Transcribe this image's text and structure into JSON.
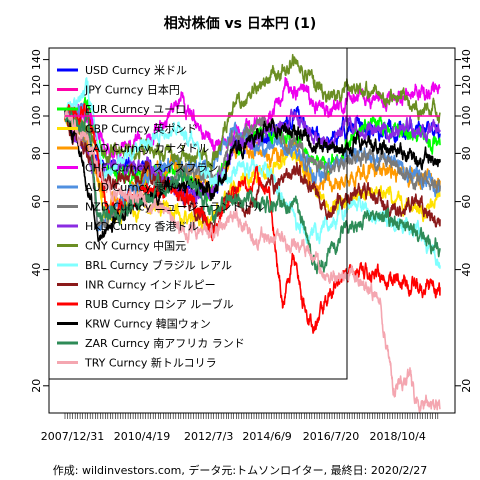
{
  "chart_data": {
    "type": "line",
    "title": "相対株価 vs 日本円 (1)",
    "caption": "作成: wildinvestors.com, データ元:トムソンロイター, 最終日: 2020/2/27",
    "y_scale": "log",
    "ylim": [
      17,
      150
    ],
    "y_ticks": [
      20,
      40,
      60,
      80,
      100,
      120,
      140
    ],
    "x_range": [
      "2007-10-01",
      "2020-02-27"
    ],
    "x_tick_labels": [
      {
        "label": "2007/12/31",
        "date": "2007-12-31"
      },
      {
        "label": "2010/4/19",
        "date": "2010-04-19"
      },
      {
        "label": "2012/7/3",
        "date": "2012-07-03"
      },
      {
        "label": "2014/6/9",
        "date": "2014-06-09"
      },
      {
        "label": "2016/7/20",
        "date": "2016-07-20"
      },
      {
        "label": "2018/10/4",
        "date": "2018-10-04"
      }
    ],
    "reference_line": {
      "y": 100,
      "color": "#ff00ff"
    },
    "legend": "top-left",
    "series": [
      {
        "name": "USD Curncy 米ドル",
        "color": "#0000ff",
        "points": [
          [
            "2007-10-01",
            100
          ],
          [
            "2008-03-01",
            87
          ],
          [
            "2009-01-15",
            73
          ],
          [
            "2010-06-01",
            75
          ],
          [
            "2011-10-01",
            63
          ],
          [
            "2012-09-01",
            63
          ],
          [
            "2013-05-01",
            84
          ],
          [
            "2014-02-01",
            86
          ],
          [
            "2015-06-05",
            100
          ],
          [
            "2016-06-24",
            83
          ],
          [
            "2017-01-01",
            95
          ],
          [
            "2017-09-01",
            92
          ],
          [
            "2018-12-01",
            92
          ],
          [
            "2020-02-27",
            90
          ]
        ]
      },
      {
        "name": "JPY Curncy 日本円",
        "color": "#ff00aa",
        "points": [
          [
            "2007-10-01",
            100
          ],
          [
            "2020-02-27",
            100
          ]
        ]
      },
      {
        "name": "EUR Curncy ユーロ",
        "color": "#00ff00",
        "points": [
          [
            "2007-10-01",
            100
          ],
          [
            "2008-07-15",
            105
          ],
          [
            "2009-03-01",
            74
          ],
          [
            "2010-06-01",
            69
          ],
          [
            "2011-04-15",
            75
          ],
          [
            "2012-07-24",
            63
          ],
          [
            "2013-05-01",
            83
          ],
          [
            "2014-01-01",
            91
          ],
          [
            "2015-04-01",
            87
          ],
          [
            "2016-06-24",
            74
          ],
          [
            "2017-06-01",
            90
          ],
          [
            "2018-02-01",
            95
          ],
          [
            "2019-06-01",
            88
          ],
          [
            "2020-02-27",
            84
          ]
        ]
      },
      {
        "name": "GBP Curncy 英ポンド",
        "color": "#ffe100",
        "points": [
          [
            "2007-10-01",
            100
          ],
          [
            "2008-07-01",
            92
          ],
          [
            "2009-01-20",
            54
          ],
          [
            "2010-06-01",
            59
          ],
          [
            "2011-06-01",
            56
          ],
          [
            "2012-06-01",
            53
          ],
          [
            "2013-06-01",
            66
          ],
          [
            "2014-07-01",
            74
          ],
          [
            "2015-07-01",
            77
          ],
          [
            "2016-06-24",
            57
          ],
          [
            "2017-06-01",
            62
          ],
          [
            "2018-04-01",
            63
          ],
          [
            "2019-08-01",
            56
          ],
          [
            "2020-02-27",
            62
          ]
        ]
      },
      {
        "name": "CAD Curncy カナダドル",
        "color": "#ff9900",
        "points": [
          [
            "2007-10-01",
            100
          ],
          [
            "2008-06-01",
            88
          ],
          [
            "2009-03-01",
            58
          ],
          [
            "2010-06-01",
            69
          ],
          [
            "2011-07-20",
            76
          ],
          [
            "2012-09-01",
            65
          ],
          [
            "2013-06-01",
            81
          ],
          [
            "2014-06-01",
            80
          ],
          [
            "2015-06-01",
            81
          ],
          [
            "2016-01-20",
            65
          ],
          [
            "2017-01-01",
            70
          ],
          [
            "2018-06-01",
            72
          ],
          [
            "2020-02-27",
            68
          ]
        ]
      },
      {
        "name": "CHF Curncy スイスフラン",
        "color": "#ee00ee",
        "points": [
          [
            "2007-10-01",
            100
          ],
          [
            "2008-06-01",
            102
          ],
          [
            "2009-03-01",
            82
          ],
          [
            "2010-06-01",
            85
          ],
          [
            "2011-08-10",
            110
          ],
          [
            "2012-09-01",
            83
          ],
          [
            "2013-06-01",
            89
          ],
          [
            "2014-06-01",
            97
          ],
          [
            "2015-01-15",
            118
          ],
          [
            "2015-08-01",
            117
          ],
          [
            "2016-06-01",
            103
          ],
          [
            "2017-06-01",
            112
          ],
          [
            "2018-06-01",
            114
          ],
          [
            "2019-06-01",
            114
          ],
          [
            "2020-02-27",
            119
          ]
        ]
      },
      {
        "name": "AUD Curncy 豪ドル",
        "color": "#5090e0",
        "points": [
          [
            "2007-10-01",
            100
          ],
          [
            "2008-07-15",
            102
          ],
          [
            "2008-10-25",
            52
          ],
          [
            "2009-03-01",
            55
          ],
          [
            "2010-06-01",
            70
          ],
          [
            "2011-07-20",
            76
          ],
          [
            "2012-09-01",
            73
          ],
          [
            "2013-04-10",
            93
          ],
          [
            "2014-01-01",
            84
          ],
          [
            "2015-06-01",
            81
          ],
          [
            "2016-02-01",
            70
          ],
          [
            "2017-06-01",
            79
          ],
          [
            "2018-06-01",
            77
          ],
          [
            "2019-06-01",
            69
          ],
          [
            "2020-02-27",
            66
          ]
        ]
      },
      {
        "name": "NZD Curncy ニュージーランドドル",
        "color": "#7a7a7a",
        "points": [
          [
            "2007-10-01",
            100
          ],
          [
            "2008-07-01",
            88
          ],
          [
            "2008-10-25",
            55
          ],
          [
            "2009-03-01",
            53
          ],
          [
            "2010-06-01",
            62
          ],
          [
            "2011-08-01",
            73
          ],
          [
            "2012-09-01",
            69
          ],
          [
            "2013-04-10",
            87
          ],
          [
            "2014-07-01",
            93
          ],
          [
            "2015-06-01",
            83
          ],
          [
            "2016-06-01",
            72
          ],
          [
            "2017-06-01",
            78
          ],
          [
            "2018-06-01",
            75
          ],
          [
            "2019-06-01",
            69
          ],
          [
            "2020-02-27",
            66
          ]
        ]
      },
      {
        "name": "HKD Curncy 香港ドル",
        "color": "#8a2be2",
        "points": [
          [
            "2007-10-01",
            100
          ],
          [
            "2008-03-01",
            86
          ],
          [
            "2009-01-15",
            73
          ],
          [
            "2010-06-01",
            75
          ],
          [
            "2011-10-01",
            63
          ],
          [
            "2012-09-01",
            63
          ],
          [
            "2013-05-01",
            84
          ],
          [
            "2014-02-01",
            86
          ],
          [
            "2015-06-05",
            100
          ],
          [
            "2016-06-24",
            83
          ],
          [
            "2017-01-01",
            95
          ],
          [
            "2017-09-01",
            93
          ],
          [
            "2018-12-01",
            92
          ],
          [
            "2020-02-27",
            91
          ]
        ]
      },
      {
        "name": "CNY Curncy 中国元",
        "color": "#6b8e23",
        "points": [
          [
            "2007-10-01",
            100
          ],
          [
            "2008-07-01",
            90
          ],
          [
            "2009-01-15",
            81
          ],
          [
            "2010-06-01",
            83
          ],
          [
            "2011-10-01",
            78
          ],
          [
            "2012-09-01",
            79
          ],
          [
            "2013-05-01",
            105
          ],
          [
            "2014-01-01",
            117
          ],
          [
            "2015-06-05",
            138
          ],
          [
            "2016-01-01",
            127
          ],
          [
            "2016-06-24",
            108
          ],
          [
            "2017-01-01",
            117
          ],
          [
            "2018-03-01",
            116
          ],
          [
            "2019-09-01",
            103
          ],
          [
            "2020-02-27",
            102
          ]
        ]
      },
      {
        "name": "BRL Curncy ブラジル レアル",
        "color": "#7fffff",
        "points": [
          [
            "2007-10-01",
            100
          ],
          [
            "2008-07-01",
            120
          ],
          [
            "2009-01-15",
            68
          ],
          [
            "2010-06-01",
            84
          ],
          [
            "2011-07-20",
            92
          ],
          [
            "2012-09-01",
            68
          ],
          [
            "2013-06-01",
            73
          ],
          [
            "2014-06-01",
            73
          ],
          [
            "2015-09-24",
            48
          ],
          [
            "2016-06-01",
            52
          ],
          [
            "2017-06-01",
            60
          ],
          [
            "2018-06-01",
            52
          ],
          [
            "2019-06-01",
            52
          ],
          [
            "2020-02-27",
            41
          ]
        ]
      },
      {
        "name": "INR Curncy インドルピー",
        "color": "#8b1a1a",
        "points": [
          [
            "2007-10-01",
            100
          ],
          [
            "2008-07-01",
            82
          ],
          [
            "2009-01-15",
            67
          ],
          [
            "2010-06-01",
            72
          ],
          [
            "2011-10-01",
            59
          ],
          [
            "2012-09-01",
            53
          ],
          [
            "2013-05-01",
            66
          ],
          [
            "2013-08-28",
            56
          ],
          [
            "2014-06-01",
            66
          ],
          [
            "2015-06-01",
            73
          ],
          [
            "2016-06-24",
            57
          ],
          [
            "2017-06-01",
            64
          ],
          [
            "2018-09-01",
            57
          ],
          [
            "2019-06-01",
            58
          ],
          [
            "2020-02-27",
            54
          ]
        ]
      },
      {
        "name": "RUB Curncy ロシア ルーブル",
        "color": "#ff0000",
        "points": [
          [
            "2007-10-01",
            100
          ],
          [
            "2008-07-01",
            103
          ],
          [
            "2009-02-15",
            58
          ],
          [
            "2010-06-01",
            64
          ],
          [
            "2011-07-20",
            64
          ],
          [
            "2012-09-01",
            51
          ],
          [
            "2013-06-01",
            66
          ],
          [
            "2014-07-01",
            66
          ],
          [
            "2014-12-16",
            31
          ],
          [
            "2015-04-15",
            43
          ],
          [
            "2015-08-24",
            32
          ],
          [
            "2016-01-20",
            29
          ],
          [
            "2016-11-01",
            38
          ],
          [
            "2017-06-01",
            40
          ],
          [
            "2018-06-01",
            38
          ],
          [
            "2019-06-01",
            36
          ],
          [
            "2020-02-27",
            36
          ]
        ]
      },
      {
        "name": "KRW Curncy 韓国ウォン",
        "color": "#000000",
        "points": [
          [
            "2007-10-01",
            100
          ],
          [
            "2008-03-01",
            85
          ],
          [
            "2008-11-20",
            48
          ],
          [
            "2009-03-01",
            52
          ],
          [
            "2010-06-01",
            62
          ],
          [
            "2011-07-01",
            66
          ],
          [
            "2012-09-01",
            63
          ],
          [
            "2013-05-01",
            82
          ],
          [
            "2014-07-01",
            93
          ],
          [
            "2015-06-01",
            90
          ],
          [
            "2016-06-24",
            80
          ],
          [
            "2017-06-01",
            87
          ],
          [
            "2018-06-01",
            84
          ],
          [
            "2019-06-01",
            78
          ],
          [
            "2020-02-27",
            76
          ]
        ]
      },
      {
        "name": "ZAR Curncy 南アフリカ ランド",
        "color": "#2e8b57",
        "points": [
          [
            "2007-10-01",
            100
          ],
          [
            "2008-07-01",
            96
          ],
          [
            "2008-10-25",
            56
          ],
          [
            "2009-03-01",
            55
          ],
          [
            "2010-06-01",
            61
          ],
          [
            "2011-07-20",
            71
          ],
          [
            "2012-09-01",
            57
          ],
          [
            "2013-06-01",
            61
          ],
          [
            "2014-07-01",
            60
          ],
          [
            "2015-06-01",
            58
          ],
          [
            "2016-01-20",
            40
          ],
          [
            "2016-06-01",
            44
          ],
          [
            "2017-06-01",
            53
          ],
          [
            "2018-03-01",
            54
          ],
          [
            "2019-06-01",
            50
          ],
          [
            "2020-02-27",
            45
          ]
        ]
      },
      {
        "name": "TRY Curncy 新トルコリラ",
        "color": "#f4a6b0",
        "points": [
          [
            "2007-10-01",
            100
          ],
          [
            "2008-07-01",
            87
          ],
          [
            "2009-02-15",
            64
          ],
          [
            "2010-06-01",
            60
          ],
          [
            "2011-10-01",
            51
          ],
          [
            "2012-09-01",
            51
          ],
          [
            "2013-05-01",
            56
          ],
          [
            "2014-01-25",
            48
          ],
          [
            "2015-06-01",
            48
          ],
          [
            "2016-06-24",
            38
          ],
          [
            "2017-06-01",
            38
          ],
          [
            "2018-03-01",
            34
          ],
          [
            "2018-08-13",
            20
          ],
          [
            "2019-03-01",
            21
          ],
          [
            "2019-06-01",
            18
          ],
          [
            "2020-02-27",
            17.5
          ]
        ]
      }
    ]
  }
}
